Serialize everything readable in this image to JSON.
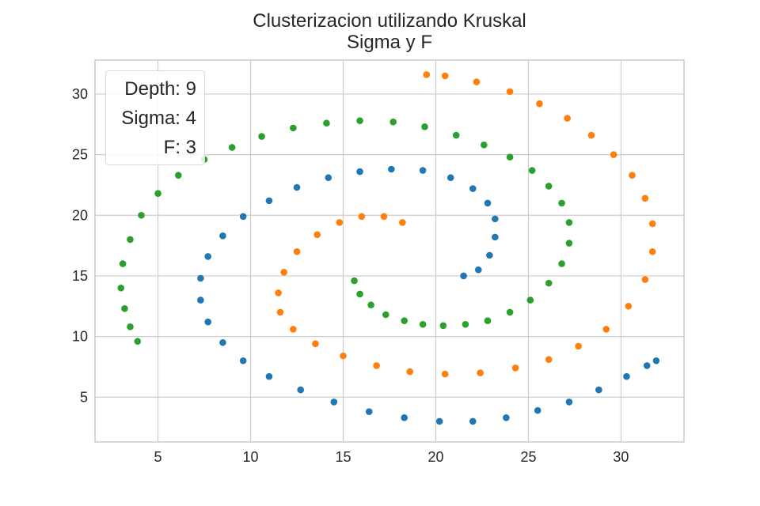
{
  "title": "Clusterizacion utilizando Kruskal",
  "subtitle": "Sigma y F",
  "legend": {
    "depth": "Depth: 9",
    "sigma": "Sigma: 4",
    "f": "F: 3"
  },
  "chart_data": {
    "type": "scatter",
    "title": "Clusterizacion utilizando Kruskal\nSigma y F",
    "xlabel": "",
    "ylabel": "",
    "xlim": [
      1.6,
      33.4
    ],
    "ylim": [
      1.3,
      32.8
    ],
    "xticks": [
      5,
      10,
      15,
      20,
      25,
      30
    ],
    "yticks": [
      5,
      10,
      15,
      20,
      25,
      30
    ],
    "grid": true,
    "legend_position": "top-left",
    "legend_entries": [
      "Depth: 9",
      "Sigma: 4",
      "F: 3"
    ],
    "series": [
      {
        "color": "#1f77b4",
        "x": [
          21.5,
          22.3,
          22.9,
          23.2,
          23.2,
          22.8,
          22.0,
          20.8,
          19.3,
          17.6,
          15.9,
          14.2,
          12.5,
          11.0,
          9.6,
          8.5,
          7.7,
          7.3,
          7.3,
          7.7,
          8.5,
          9.6,
          11.0,
          12.7,
          14.5,
          16.4,
          18.3,
          20.2,
          22.0,
          23.8,
          25.5,
          27.2,
          28.8,
          30.3,
          31.4,
          31.9
        ],
        "y": [
          15.0,
          15.5,
          16.7,
          18.2,
          19.7,
          21.0,
          22.2,
          23.1,
          23.7,
          23.8,
          23.6,
          23.1,
          22.3,
          21.2,
          19.9,
          18.3,
          16.6,
          14.8,
          13.0,
          11.2,
          9.5,
          8.0,
          6.7,
          5.6,
          4.6,
          3.8,
          3.3,
          3.0,
          3.0,
          3.3,
          3.9,
          4.6,
          5.6,
          6.7,
          7.6,
          8.0
        ]
      },
      {
        "color": "#ff7f0e",
        "x": [
          18.2,
          17.2,
          16.0,
          14.8,
          13.6,
          12.5,
          11.8,
          11.5,
          11.6,
          12.3,
          13.5,
          15.0,
          16.8,
          18.6,
          20.5,
          22.4,
          24.3,
          26.1,
          27.7,
          29.2,
          30.4,
          31.3,
          31.7,
          31.7,
          31.3,
          30.6,
          29.6,
          28.4,
          27.1,
          25.6,
          24.0,
          22.2,
          20.5,
          19.5
        ],
        "y": [
          19.4,
          19.9,
          19.9,
          19.4,
          18.4,
          17.0,
          15.3,
          13.6,
          12.0,
          10.6,
          9.4,
          8.4,
          7.6,
          7.1,
          6.9,
          7.0,
          7.4,
          8.1,
          9.2,
          10.6,
          12.5,
          14.7,
          17.0,
          19.3,
          21.4,
          23.3,
          25.0,
          26.6,
          28.0,
          29.2,
          30.2,
          31.0,
          31.5,
          31.6
        ]
      },
      {
        "color": "#2ca02c",
        "x": [
          15.6,
          15.9,
          16.5,
          17.3,
          18.3,
          19.3,
          20.4,
          21.6,
          22.8,
          24.0,
          25.1,
          26.1,
          26.8,
          27.2,
          27.2,
          26.8,
          26.1,
          25.2,
          24.0,
          22.6,
          21.1,
          19.4,
          17.7,
          15.9,
          14.1,
          12.3,
          10.6,
          9.0,
          7.5,
          6.1,
          5.0,
          4.1,
          3.5,
          3.1,
          3.0,
          3.2,
          3.5,
          3.9
        ],
        "y": [
          14.6,
          13.5,
          12.6,
          11.8,
          11.3,
          11.0,
          10.9,
          11.0,
          11.3,
          12.0,
          13.0,
          14.4,
          16.0,
          17.7,
          19.4,
          21.0,
          22.4,
          23.7,
          24.8,
          25.8,
          26.6,
          27.3,
          27.7,
          27.8,
          27.6,
          27.2,
          26.5,
          25.6,
          24.6,
          23.3,
          21.8,
          20.0,
          18.0,
          16.0,
          14.0,
          12.3,
          10.8,
          9.6
        ]
      }
    ]
  }
}
